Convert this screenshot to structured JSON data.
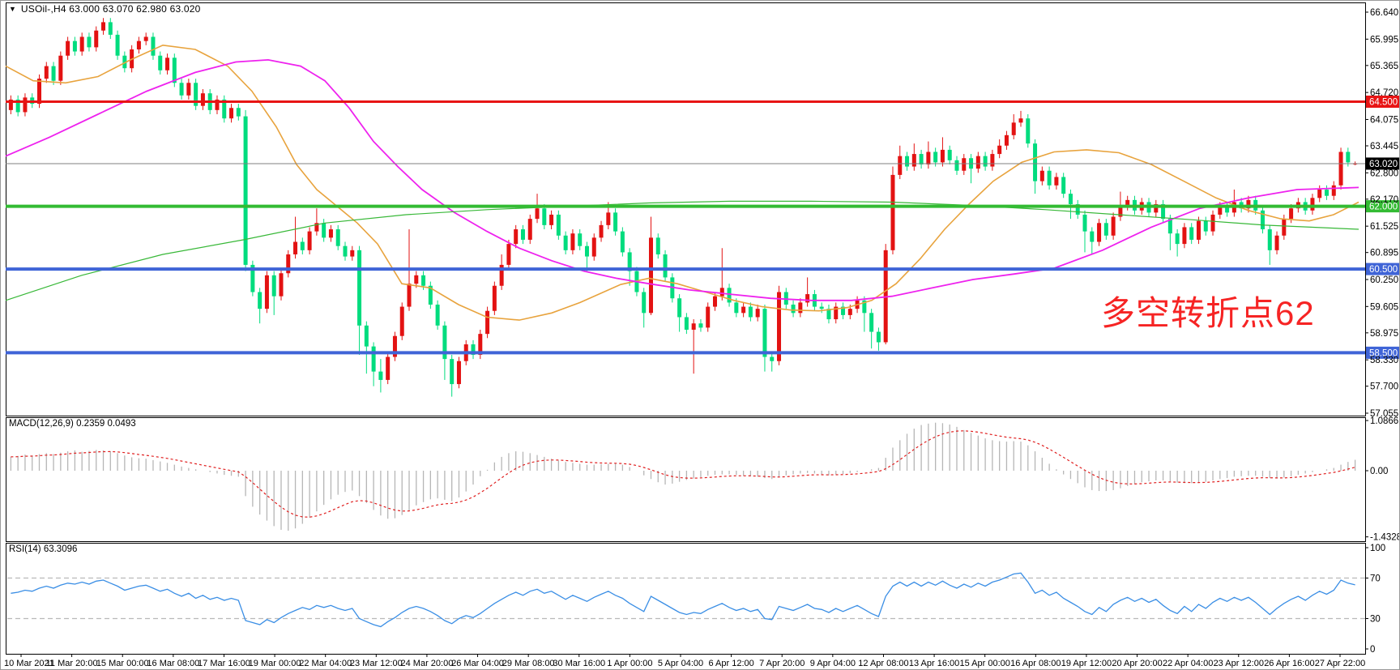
{
  "header": {
    "symbol": "USOil-",
    "timeframe": "H4",
    "title": "USOil-,H4  63.000 63.070 62.980 63.020",
    "ohlc": {
      "open": "63.000",
      "high": "63.070",
      "low": "62.980",
      "close": "63.020"
    }
  },
  "colors": {
    "up_candle": "#e31212",
    "down_candle": "#00dc7e",
    "ma_fast": "#e8a33d",
    "ma_slow": "#ee22ee",
    "ma_long": "#38b838",
    "resistance_line": "#e81414",
    "pivot_line": "#33bb33",
    "support_line": "#3f64d7",
    "current_price_line": "#808080",
    "current_price_label_bg": "#000000",
    "macd_histogram": "#b6b6b6",
    "macd_signal": "#e02020",
    "rsi_line": "#3a8ee5",
    "rsi_levels": "#b9b9b9",
    "annotation": "#f62424",
    "axis_text": "#000000"
  },
  "main_chart": {
    "annotation": {
      "text": "多空转折点62"
    },
    "y_axis_ticks": [
      "66.640",
      "65.995",
      "65.365",
      "64.720",
      "64.075",
      "63.445",
      "62.800",
      "62.170",
      "61.525",
      "60.895",
      "60.250",
      "59.605",
      "58.975",
      "58.330",
      "57.700",
      "57.055"
    ],
    "level_lines": [
      {
        "price": 64.5,
        "label": "64.500",
        "color": "#e81414",
        "width": 3
      },
      {
        "price": 62.0,
        "label": "62.000",
        "color": "#33bb33",
        "width": 4
      },
      {
        "price": 60.5,
        "label": "60.500",
        "color": "#3f64d7",
        "width": 4
      },
      {
        "price": 58.5,
        "label": "58.500",
        "color": "#3f64d7",
        "width": 4
      }
    ],
    "current_price_line": {
      "price": 63.02,
      "label": "63.020"
    }
  },
  "macd_panel": {
    "label": "MACD(12,26,9) 0.2359 0.0493",
    "macd_value": "0.2359",
    "signal_value": "0.0493",
    "y_ticks": [
      {
        "v": 1.0866,
        "label": "1.0866"
      },
      {
        "v": 0,
        "label": "0.00"
      },
      {
        "v": -1.4328,
        "label": "-1.4328"
      }
    ]
  },
  "rsi_panel": {
    "label": "RSI(14) 63.3096",
    "rsi_value": "63.3096",
    "y_ticks": [
      {
        "v": 100,
        "label": "100"
      },
      {
        "v": 70,
        "label": "70"
      },
      {
        "v": 30,
        "label": "30"
      },
      {
        "v": 0,
        "label": "0"
      }
    ],
    "dashed_levels": [
      70,
      30
    ]
  },
  "time_axis": {
    "labels": [
      "10 Mar 2021",
      "11 Mar 20:00",
      "15 Mar 00:00",
      "16 Mar 08:00",
      "17 Mar 16:00",
      "19 Mar 00:00",
      "22 Mar 04:00",
      "23 Mar 12:00",
      "24 Mar 20:00",
      "26 Mar 04:00",
      "29 Mar 08:00",
      "30 Mar 16:00",
      "1 Apr 00:00",
      "5 Apr 04:00",
      "6 Apr 12:00",
      "7 Apr 20:00",
      "9 Apr 04:00",
      "12 Apr 08:00",
      "13 Apr 16:00",
      "15 Apr 00:00",
      "16 Apr 08:00",
      "19 Apr 12:00",
      "20 Apr 20:00",
      "22 Apr 04:00",
      "23 Apr 12:00",
      "26 Apr 16:00",
      "27 Apr 22:00"
    ]
  },
  "chart_data": {
    "type": "candlestick",
    "title": "USOil- H4",
    "y_range": {
      "top_tick": 66.64,
      "bottom_tick": 57.055
    },
    "candles": {
      "open_first": 64.3,
      "wick_default": 0.1,
      "closes": [
        64.55,
        64.25,
        64.6,
        64.45,
        65.05,
        65.35,
        65.0,
        65.6,
        65.95,
        65.7,
        66.05,
        65.8,
        66.2,
        66.4,
        66.1,
        65.6,
        65.3,
        65.75,
        65.95,
        66.05,
        65.6,
        65.25,
        65.55,
        64.95,
        64.65,
        64.95,
        64.4,
        64.7,
        64.3,
        64.55,
        64.1,
        64.35,
        64.15,
        60.6,
        59.95,
        59.55,
        60.35,
        59.85,
        60.4,
        60.85,
        61.15,
        60.95,
        61.4,
        61.6,
        61.25,
        61.45,
        61.05,
        60.8,
        60.95,
        59.15,
        58.65,
        58.05,
        57.85,
        58.4,
        58.9,
        59.6,
        60.15,
        60.35,
        60.1,
        59.65,
        59.15,
        58.35,
        57.75,
        58.3,
        58.7,
        58.45,
        58.95,
        59.5,
        60.1,
        60.6,
        61.1,
        61.45,
        61.2,
        61.7,
        61.95,
        61.55,
        61.8,
        61.3,
        60.95,
        61.35,
        61.05,
        60.8,
        61.25,
        61.55,
        61.85,
        61.4,
        60.9,
        60.45,
        59.95,
        59.45,
        61.25,
        60.85,
        60.3,
        59.8,
        59.35,
        59.05,
        59.2,
        59.1,
        59.6,
        59.85,
        60.05,
        59.7,
        59.45,
        59.6,
        59.35,
        59.55,
        58.4,
        58.3,
        59.95,
        59.65,
        59.45,
        59.7,
        59.9,
        59.6,
        59.55,
        59.3,
        59.6,
        59.4,
        59.55,
        59.75,
        59.45,
        59.0,
        58.75,
        60.95,
        62.75,
        63.2,
        62.95,
        63.25,
        63.0,
        63.3,
        63.05,
        63.35,
        63.1,
        62.85,
        63.15,
        62.9,
        63.2,
        62.95,
        63.25,
        63.45,
        63.7,
        64.0,
        64.1,
        63.5,
        62.6,
        62.85,
        62.5,
        62.7,
        62.3,
        62.05,
        61.8,
        61.4,
        61.15,
        61.6,
        61.3,
        61.75,
        62.0,
        62.15,
        61.9,
        62.1,
        61.85,
        62.05,
        61.7,
        61.35,
        61.1,
        61.5,
        61.2,
        61.65,
        61.4,
        61.8,
        62.0,
        61.85,
        62.1,
        61.95,
        62.15,
        61.9,
        61.45,
        60.95,
        61.3,
        61.7,
        61.95,
        62.1,
        61.9,
        62.2,
        62.4,
        62.25,
        62.5,
        63.3,
        63.05,
        63.02
      ],
      "open_overrides": {
        "0": 64.3,
        "189": 63.0
      },
      "wick_overrides": {
        "33": [
          64.3,
          60.45
        ],
        "35": [
          null,
          59.2
        ],
        "37": [
          null,
          59.4
        ],
        "40": [
          61.75,
          null
        ],
        "43": [
          61.95,
          null
        ],
        "49": [
          61.05,
          58.45
        ],
        "50": [
          null,
          58.0
        ],
        "51": [
          null,
          57.7
        ],
        "52": [
          58.35,
          57.55
        ],
        "56": [
          61.45,
          null
        ],
        "61": [
          null,
          57.85
        ],
        "62": [
          null,
          57.45
        ],
        "69": [
          60.85,
          null
        ],
        "74": [
          62.3,
          null
        ],
        "81": [
          null,
          60.45
        ],
        "84": [
          62.1,
          null
        ],
        "87": [
          null,
          60.1
        ],
        "89": [
          null,
          59.1
        ],
        "90": [
          61.75,
          59.4
        ],
        "94": [
          null,
          59.0
        ],
        "96": [
          null,
          58.0
        ],
        "100": [
          61.0,
          null
        ],
        "106": [
          null,
          58.05
        ],
        "107": [
          null,
          58.05
        ],
        "108": [
          60.1,
          null
        ],
        "112": [
          60.3,
          null
        ],
        "120": [
          null,
          59.0
        ],
        "121": [
          null,
          58.6
        ],
        "122": [
          null,
          58.55
        ],
        "123": [
          61.1,
          58.7
        ],
        "124": [
          62.95,
          null
        ],
        "125": [
          63.45,
          null
        ],
        "127": [
          63.5,
          null
        ],
        "129": [
          63.55,
          null
        ],
        "131": [
          63.65,
          null
        ],
        "135": [
          null,
          62.55
        ],
        "139": [
          63.6,
          null
        ],
        "141": [
          64.2,
          null
        ],
        "142": [
          64.28,
          null
        ],
        "144": [
          null,
          62.3
        ],
        "149": [
          null,
          61.7
        ],
        "151": [
          null,
          60.9
        ],
        "152": [
          null,
          60.85
        ],
        "156": [
          62.35,
          null
        ],
        "163": [
          null,
          60.95
        ],
        "164": [
          null,
          60.8
        ],
        "172": [
          62.4,
          null
        ],
        "177": [
          null,
          60.6
        ],
        "187": [
          63.4,
          62.4
        ],
        "189": [
          63.07,
          62.98
        ]
      }
    },
    "ma_lines": [
      {
        "name": "ma-fast-orange",
        "points": [
          [
            6,
            65.35
          ],
          [
            40,
            65.0
          ],
          [
            80,
            64.95
          ],
          [
            120,
            65.1
          ],
          [
            160,
            65.5
          ],
          [
            200,
            65.85
          ],
          [
            240,
            65.75
          ],
          [
            280,
            65.35
          ],
          [
            310,
            64.75
          ],
          [
            340,
            63.9
          ],
          [
            365,
            63.0
          ],
          [
            390,
            62.4
          ],
          [
            415,
            62.0
          ],
          [
            440,
            61.6
          ],
          [
            465,
            61.1
          ],
          [
            495,
            60.15
          ],
          [
            530,
            60.05
          ],
          [
            565,
            59.65
          ],
          [
            600,
            59.35
          ],
          [
            640,
            59.28
          ],
          [
            680,
            59.45
          ],
          [
            715,
            59.7
          ],
          [
            765,
            60.13
          ],
          [
            800,
            60.28
          ],
          [
            835,
            60.15
          ],
          [
            870,
            59.95
          ],
          [
            905,
            59.75
          ],
          [
            940,
            59.6
          ],
          [
            975,
            59.52
          ],
          [
            1010,
            59.5
          ],
          [
            1045,
            59.58
          ],
          [
            1075,
            59.75
          ],
          [
            1105,
            60.15
          ],
          [
            1135,
            60.75
          ],
          [
            1165,
            61.45
          ],
          [
            1195,
            62.05
          ],
          [
            1225,
            62.6
          ],
          [
            1260,
            63.05
          ],
          [
            1300,
            63.3
          ],
          [
            1340,
            63.35
          ],
          [
            1380,
            63.28
          ],
          [
            1420,
            63.0
          ],
          [
            1460,
            62.6
          ],
          [
            1500,
            62.2
          ],
          [
            1540,
            61.9
          ],
          [
            1580,
            61.7
          ],
          [
            1615,
            61.65
          ],
          [
            1645,
            61.8
          ],
          [
            1676,
            62.1
          ]
        ]
      },
      {
        "name": "ma-slow-magenta",
        "points": [
          [
            6,
            63.2
          ],
          [
            60,
            63.65
          ],
          [
            120,
            64.2
          ],
          [
            180,
            64.75
          ],
          [
            240,
            65.2
          ],
          [
            290,
            65.45
          ],
          [
            330,
            65.5
          ],
          [
            370,
            65.35
          ],
          [
            400,
            65.0
          ],
          [
            430,
            64.35
          ],
          [
            460,
            63.55
          ],
          [
            490,
            62.95
          ],
          [
            520,
            62.4
          ],
          [
            560,
            61.85
          ],
          [
            600,
            61.4
          ],
          [
            640,
            61.0
          ],
          [
            680,
            60.7
          ],
          [
            720,
            60.45
          ],
          [
            760,
            60.28
          ],
          [
            800,
            60.15
          ],
          [
            850,
            60.0
          ],
          [
            900,
            59.9
          ],
          [
            950,
            59.8
          ],
          [
            1000,
            59.75
          ],
          [
            1050,
            59.75
          ],
          [
            1100,
            59.85
          ],
          [
            1150,
            60.05
          ],
          [
            1200,
            60.25
          ],
          [
            1250,
            60.38
          ],
          [
            1300,
            60.52
          ],
          [
            1360,
            60.95
          ],
          [
            1420,
            61.5
          ],
          [
            1480,
            61.95
          ],
          [
            1540,
            62.2
          ],
          [
            1600,
            62.4
          ],
          [
            1676,
            62.45
          ]
        ]
      },
      {
        "name": "ma-long-green",
        "points": [
          [
            6,
            59.75
          ],
          [
            100,
            60.35
          ],
          [
            200,
            60.85
          ],
          [
            300,
            61.2
          ],
          [
            400,
            61.6
          ],
          [
            500,
            61.8
          ],
          [
            600,
            61.92
          ],
          [
            700,
            62.0
          ],
          [
            800,
            62.08
          ],
          [
            900,
            62.12
          ],
          [
            1000,
            62.12
          ],
          [
            1100,
            62.1
          ],
          [
            1200,
            62.02
          ],
          [
            1290,
            61.92
          ],
          [
            1380,
            61.8
          ],
          [
            1470,
            61.68
          ],
          [
            1560,
            61.55
          ],
          [
            1676,
            61.45
          ]
        ]
      }
    ],
    "macd_values": [
      0.3,
      0.32,
      0.35,
      0.33,
      0.36,
      0.38,
      0.36,
      0.39,
      0.42,
      0.44,
      0.41,
      0.43,
      0.45,
      0.44,
      0.42,
      0.38,
      0.33,
      0.29,
      0.27,
      0.26,
      0.23,
      0.2,
      0.17,
      0.13,
      0.09,
      0.06,
      0.03,
      0.0,
      -0.03,
      -0.06,
      -0.09,
      -0.11,
      -0.13,
      -0.55,
      -0.78,
      -0.95,
      -1.08,
      -1.2,
      -1.28,
      -1.3,
      -1.25,
      -1.15,
      -1.02,
      -0.88,
      -0.74,
      -0.62,
      -0.52,
      -0.46,
      -0.43,
      -0.55,
      -0.7,
      -0.85,
      -0.97,
      -1.04,
      -1.03,
      -0.96,
      -0.86,
      -0.75,
      -0.68,
      -0.62,
      -0.6,
      -0.63,
      -0.66,
      -0.58,
      -0.45,
      -0.3,
      -0.12,
      0.02,
      0.18,
      0.3,
      0.38,
      0.42,
      0.41,
      0.38,
      0.34,
      0.3,
      0.26,
      0.22,
      0.19,
      0.17,
      0.15,
      0.13,
      0.13,
      0.14,
      0.15,
      0.15,
      0.13,
      0.08,
      0.0,
      -0.1,
      -0.18,
      -0.25,
      -0.3,
      -0.28,
      -0.24,
      -0.2,
      -0.17,
      -0.14,
      -0.11,
      -0.09,
      -0.08,
      -0.08,
      -0.09,
      -0.11,
      -0.12,
      -0.13,
      -0.16,
      -0.18,
      -0.14,
      -0.1,
      -0.08,
      -0.06,
      -0.05,
      -0.06,
      -0.08,
      -0.1,
      -0.08,
      -0.07,
      -0.05,
      -0.03,
      0.0,
      0.03,
      0.06,
      0.28,
      0.5,
      0.66,
      0.8,
      0.91,
      0.99,
      1.02,
      1.04,
      1.03,
      1.0,
      0.95,
      0.88,
      0.82,
      0.76,
      0.7,
      0.66,
      0.64,
      0.63,
      0.64,
      0.63,
      0.55,
      0.42,
      0.28,
      0.15,
      0.03,
      -0.08,
      -0.18,
      -0.27,
      -0.36,
      -0.42,
      -0.44,
      -0.44,
      -0.42,
      -0.38,
      -0.33,
      -0.29,
      -0.25,
      -0.23,
      -0.21,
      -0.21,
      -0.23,
      -0.26,
      -0.27,
      -0.27,
      -0.26,
      -0.24,
      -0.21,
      -0.18,
      -0.16,
      -0.13,
      -0.12,
      -0.11,
      -0.11,
      -0.13,
      -0.16,
      -0.17,
      -0.15,
      -0.12,
      -0.09,
      -0.06,
      -0.03,
      0.0,
      0.03,
      0.06,
      0.13,
      0.19,
      0.2359
    ],
    "rsi_values": [
      55,
      56,
      58,
      57,
      60,
      62,
      60,
      63,
      65,
      64,
      66,
      64,
      67,
      68,
      65,
      62,
      58,
      60,
      62,
      63,
      60,
      57,
      59,
      55,
      52,
      55,
      50,
      53,
      49,
      51,
      48,
      50,
      48,
      28,
      26,
      24,
      29,
      26,
      31,
      35,
      38,
      41,
      39,
      43,
      41,
      43,
      40,
      38,
      40,
      30,
      27,
      24,
      22,
      27,
      31,
      36,
      40,
      42,
      40,
      37,
      33,
      28,
      25,
      30,
      33,
      31,
      35,
      40,
      45,
      49,
      53,
      56,
      53,
      57,
      59,
      55,
      57,
      53,
      49,
      53,
      50,
      47,
      51,
      54,
      57,
      53,
      50,
      45,
      41,
      37,
      52,
      48,
      44,
      40,
      36,
      34,
      36,
      35,
      39,
      42,
      45,
      41,
      38,
      40,
      37,
      39,
      30,
      29,
      42,
      40,
      38,
      41,
      44,
      40,
      39,
      36,
      40,
      37,
      40,
      43,
      39,
      35,
      32,
      52,
      62,
      66,
      62,
      66,
      62,
      66,
      63,
      67,
      63,
      60,
      64,
      61,
      65,
      62,
      66,
      68,
      71,
      74,
      75,
      66,
      55,
      58,
      53,
      56,
      50,
      46,
      42,
      37,
      34,
      41,
      37,
      44,
      48,
      51,
      47,
      50,
      46,
      49,
      43,
      38,
      35,
      42,
      37,
      44,
      40,
      46,
      50,
      47,
      51,
      48,
      51,
      46,
      40,
      34,
      40,
      45,
      49,
      52,
      48,
      53,
      57,
      54,
      58,
      68,
      65,
      63.31
    ]
  }
}
